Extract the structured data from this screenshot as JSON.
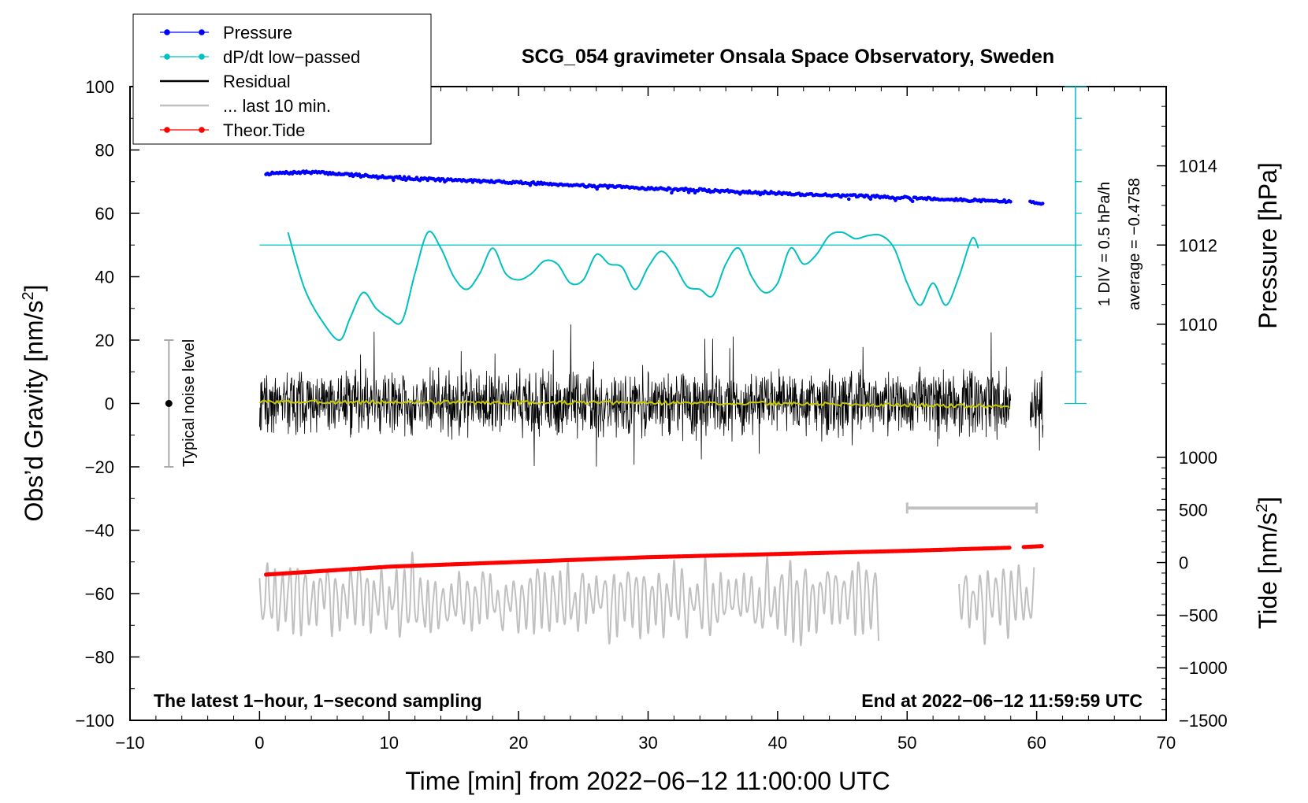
{
  "chart_data": {
    "type": "line",
    "title": "SCG_054 gravimeter Onsala Space Observatory, Sweden",
    "xlabel": "Time [min] from 2022−06−12 11:00:00 UTC",
    "ylabel": "Obs’d Gravity [nm/s²]",
    "ylabel_main": "Obs’d Gravity [nm/s",
    "ylabel_sup": "2",
    "ylabel_end": "]",
    "y2label_pressure": "Pressure [hPa]",
    "y2label_tide_main": "Tide [nm/s",
    "y2label_tide_sup": "2",
    "y2label_tide_end": "]",
    "xlim": [
      -10,
      70
    ],
    "ylim": [
      -100,
      100
    ],
    "x_ticks": [
      -10,
      0,
      10,
      20,
      30,
      40,
      50,
      60,
      70
    ],
    "x_tick_labels": [
      "−10",
      "0",
      "10",
      "20",
      "30",
      "40",
      "50",
      "60",
      "70"
    ],
    "y_ticks": [
      100,
      80,
      60,
      40,
      20,
      0,
      -20,
      -40,
      -60,
      -80,
      -100
    ],
    "y_tick_labels": [
      "100",
      "80",
      "60",
      "40",
      "20",
      "0",
      "−20",
      "−40",
      "−60",
      "−80",
      "−100"
    ],
    "pressure_ticks": [
      1014,
      1012,
      1010
    ],
    "pressure_tick_labels": [
      "1014",
      "1012",
      "1010"
    ],
    "pressure_axis": {
      "value_at_gravity_0": 1008,
      "value_at_gravity_100": 1016
    },
    "tide_ticks": [
      1000,
      500,
      0,
      -500,
      -1000,
      -1500
    ],
    "tide_tick_labels": [
      "1000",
      "500",
      "0",
      "−500",
      "−1000",
      "−1500"
    ],
    "tide_axis": {
      "value_at_gravity_-100": -1500,
      "value_at_gravity_-17": 1000
    },
    "legend": [
      {
        "label": "Pressure",
        "color": "#0000ff",
        "marker": true
      },
      {
        "label": "dP/dt low−passed",
        "color": "#00c0c0",
        "marker": true
      },
      {
        "label": "Residual",
        "color": "#000000",
        "marker": false
      },
      {
        "label": "... last 10 min.",
        "color": "#c0c0c0",
        "marker": false
      },
      {
        "label": "Theor.Tide",
        "color": "#ff0000",
        "marker": true
      }
    ],
    "legend_position": "top-left",
    "annotations": {
      "footer_left": "The latest 1−hour, 1−second sampling",
      "footer_right": "End at 2022−06−12 11:59:59 UTC",
      "noise_label": "Typical noise level",
      "dpdt_scale": "1 DIV = 0.5 hPa/h",
      "dpdt_average": "average = −0.4758"
    },
    "noise_bar": {
      "x": -7,
      "center": 0,
      "half_range": 20
    },
    "last10_bar": {
      "x_start": 50,
      "x_end": 60,
      "y": -33
    },
    "dpdt_axis": {
      "x": 63,
      "y_min": 0,
      "y_max": 100,
      "reference_y": 50,
      "divisions": 10
    },
    "series": [
      {
        "name": "Pressure",
        "color": "#0000ff",
        "unit": "hPa",
        "x": [
          0.5,
          2,
          4,
          6,
          8,
          10,
          12,
          14,
          16,
          18,
          20,
          22,
          24,
          26,
          28,
          30,
          32,
          34,
          36,
          38,
          40,
          42,
          44,
          46,
          48,
          50,
          52,
          54,
          56,
          58
        ],
        "values": [
          1013.8,
          1013.82,
          1013.84,
          1013.8,
          1013.76,
          1013.72,
          1013.68,
          1013.65,
          1013.63,
          1013.6,
          1013.58,
          1013.55,
          1013.52,
          1013.49,
          1013.46,
          1013.43,
          1013.41,
          1013.39,
          1013.36,
          1013.34,
          1013.31,
          1013.28,
          1013.26,
          1013.24,
          1013.22,
          1013.2,
          1013.17,
          1013.14,
          1013.12,
          1013.1
        ],
        "x_tail": [
          59.5,
          60.5
        ],
        "values_tail": [
          1013.08,
          1013.06
        ]
      },
      {
        "name": "dP/dt low−passed",
        "color": "#00c0c0",
        "unit": "plot units",
        "x": [
          2.2,
          3.5,
          5,
          6.2,
          7,
          8,
          9,
          10,
          11,
          12,
          13,
          14,
          15,
          16,
          17,
          18,
          19,
          20,
          21,
          22,
          23,
          24,
          25,
          26,
          27,
          28,
          29,
          30,
          31,
          32,
          33,
          34,
          35,
          36,
          37,
          38,
          39,
          40,
          41,
          42,
          43,
          44,
          45,
          46,
          47,
          48,
          49,
          50,
          51,
          52,
          53,
          54,
          55,
          55.5
        ],
        "values": [
          54,
          36,
          25,
          20,
          27,
          35,
          30,
          27,
          26,
          41,
          54,
          49,
          40,
          36,
          41,
          49,
          41,
          39,
          41,
          45,
          44,
          38,
          39,
          47,
          44,
          43,
          36,
          43,
          48,
          44,
          37,
          36,
          34,
          44,
          49,
          40,
          35,
          38,
          49,
          44,
          47,
          53,
          54,
          52,
          53,
          53,
          49,
          38,
          31,
          38,
          31,
          40,
          52,
          49
        ]
      },
      {
        "name": "Residual",
        "color": "#000000",
        "unit": "nm/s²",
        "x_range": [
          0,
          58
        ],
        "x_tail_range": [
          59.5,
          60.5
        ],
        "typical_amplitude": 10,
        "max_peak": 26,
        "min_trough": -24
      },
      {
        "name": "Residual smoothed",
        "color": "#c8c800",
        "unit": "nm/s²",
        "x": [
          0,
          10,
          20,
          30,
          40,
          50,
          58
        ],
        "values": [
          0.5,
          0.4,
          0.3,
          0.2,
          0,
          -0.5,
          -1
        ]
      },
      {
        "name": "... last 10 min.",
        "color": "#c0c0c0",
        "unit": "nm/s²",
        "x_range": [
          0,
          48
        ],
        "x_tail_range": [
          54,
          60
        ],
        "center": -62,
        "typical_amplitude": 9,
        "max_peak": -42,
        "min_trough": -82
      },
      {
        "name": "Theor.Tide",
        "color": "#ff0000",
        "unit": "nm/s²",
        "x": [
          0.5,
          10,
          20,
          30,
          40,
          50,
          58
        ],
        "values": [
          -54,
          -51.5,
          -50,
          -48.5,
          -47.5,
          -46.5,
          -45.5
        ],
        "x_tail": [
          59,
          60.5
        ],
        "values_tail": [
          -45.3,
          -45
        ]
      }
    ]
  }
}
